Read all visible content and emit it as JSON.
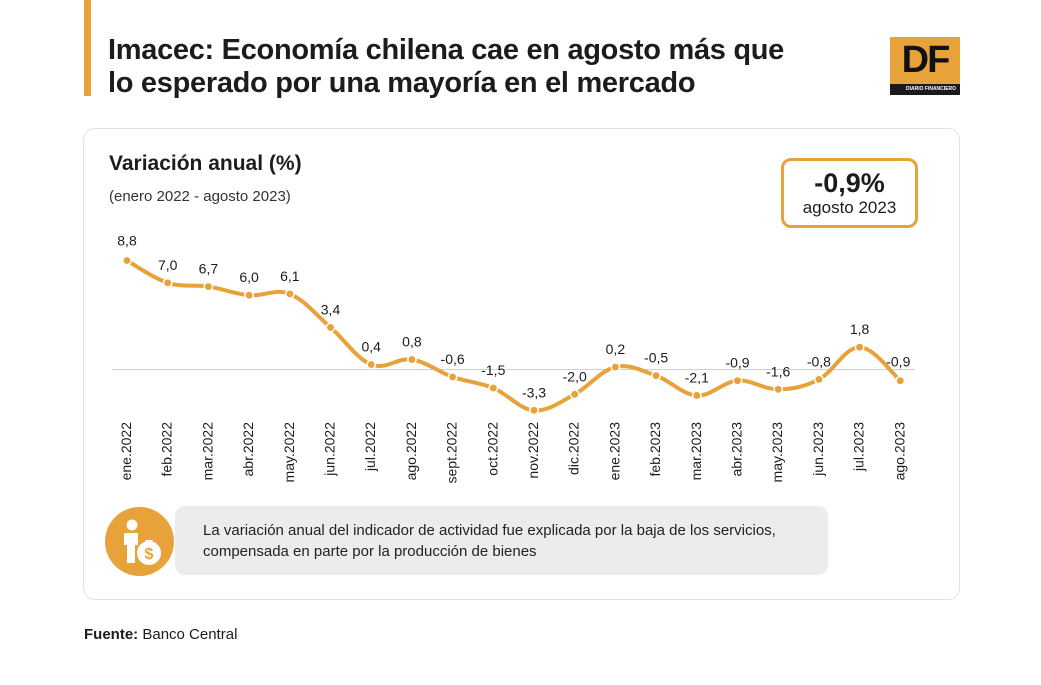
{
  "colors": {
    "accent": "#e8a23a",
    "note_bg": "#ececec",
    "text": "#1c1c1c"
  },
  "header": {
    "title": "Imacec: Economía chilena cae en agosto más que lo esperado por una mayoría en el mercado",
    "logo_letters": "DF",
    "logo_subtitle": "DIARIO FINANCIERO"
  },
  "highlight": {
    "value": "-0,9%",
    "label": "agosto 2023"
  },
  "chart_data": {
    "type": "line",
    "title": "Variación anual (%)",
    "subtitle": "(enero 2022 - agosto 2023)",
    "xlabel": "",
    "ylabel": "",
    "categories": [
      "ene.2022",
      "feb.2022",
      "mar.2022",
      "abr.2022",
      "may.2022",
      "jun.2022",
      "jul.2022",
      "ago.2022",
      "sept.2022",
      "oct.2022",
      "nov.2022",
      "dic.2022",
      "ene.2023",
      "feb.2023",
      "mar.2023",
      "abr.2023",
      "may.2023",
      "jun.2023",
      "jul.2023",
      "ago.2023"
    ],
    "values": [
      8.8,
      7.0,
      6.7,
      6.0,
      6.1,
      3.4,
      0.4,
      0.8,
      -0.6,
      -1.5,
      -3.3,
      -2.0,
      0.2,
      -0.5,
      -2.1,
      -0.9,
      -1.6,
      -0.8,
      1.8,
      -0.9
    ],
    "data_labels": [
      "8,8",
      "7,0",
      "6,7",
      "6,0",
      "6,1",
      "3,4",
      "0,4",
      "0,8",
      "-0,6",
      "-1,5",
      "-3,3",
      "-2,0",
      "0,2",
      "-0,5",
      "-2,1",
      "-0,9",
      "-1,6",
      "-0,8",
      "1,8",
      "-0,9"
    ],
    "baseline": 0,
    "ylim": [
      -3.3,
      8.8
    ],
    "grid": false,
    "legend": "none"
  },
  "note": {
    "icon": "person-money-bag-icon",
    "text": "La variación anual del indicador de actividad fue explicada por la baja de los servicios, compensada en parte por la producción de bienes"
  },
  "source": {
    "label": "Fuente:",
    "value": "Banco Central"
  }
}
